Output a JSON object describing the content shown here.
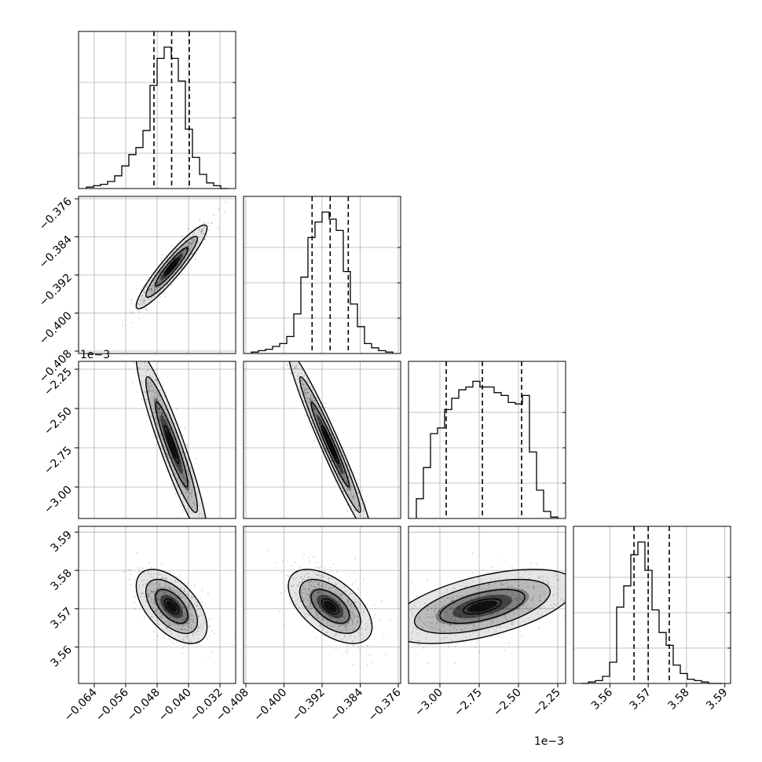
{
  "chart_data": {
    "type": "corner",
    "grid": true,
    "parameters": [
      {
        "range": [
          -0.068,
          -0.028
        ],
        "ticks": [
          -0.064,
          -0.056,
          -0.048,
          -0.04,
          -0.032
        ],
        "tick_labels": [
          "−0.064",
          "−0.056",
          "−0.048",
          "−0.040",
          "−0.032"
        ],
        "offset_text": "",
        "quantiles": [
          -0.0488,
          -0.0443,
          -0.0398
        ],
        "hist": [
          0.01,
          0.02,
          0.03,
          0.05,
          0.09,
          0.16,
          0.24,
          0.29,
          0.41,
          0.73,
          0.92,
          1.0,
          0.92,
          0.76,
          0.42,
          0.22,
          0.1,
          0.04,
          0.02,
          0.0
        ]
      },
      {
        "range": [
          -0.4085,
          -0.3755
        ],
        "ticks": [
          -0.408,
          -0.4,
          -0.392,
          -0.384,
          -0.376
        ],
        "tick_labels": [
          "−0.408",
          "−0.400",
          "−0.392",
          "−0.384",
          "−0.376"
        ],
        "offset_text": "",
        "quantiles": [
          -0.3941,
          -0.3903,
          -0.3865
        ],
        "hist": [
          0.01,
          0.02,
          0.03,
          0.05,
          0.07,
          0.12,
          0.28,
          0.54,
          0.82,
          0.93,
          1.0,
          0.95,
          0.87,
          0.58,
          0.35,
          0.19,
          0.07,
          0.04,
          0.02,
          0.01
        ]
      },
      {
        "range": [
          -3.2,
          -2.2
        ],
        "ticks": [
          -3.0,
          -2.75,
          -2.5,
          -2.25
        ],
        "tick_labels": [
          "−3.00",
          "−2.75",
          "−2.50",
          "−2.25"
        ],
        "offset_text": "1e−3",
        "quantiles": [
          -2.96,
          -2.73,
          -2.48
        ],
        "hist": [
          0.14,
          0.36,
          0.6,
          0.64,
          0.77,
          0.85,
          0.91,
          0.93,
          0.97,
          0.93,
          0.93,
          0.89,
          0.87,
          0.82,
          0.81,
          0.87,
          0.47,
          0.2,
          0.05,
          0.01
        ]
      },
      {
        "range": [
          3.5505,
          3.5915
        ],
        "ticks": [
          3.56,
          3.57,
          3.58,
          3.59
        ],
        "tick_labels": [
          "3.56",
          "3.57",
          "3.58",
          "3.59"
        ],
        "offset_text": "",
        "quantiles": [
          3.5663,
          3.57,
          3.5755
        ],
        "hist": [
          0.0,
          0.01,
          0.02,
          0.05,
          0.15,
          0.54,
          0.69,
          0.91,
          1.0,
          0.8,
          0.52,
          0.36,
          0.27,
          0.13,
          0.07,
          0.03,
          0.02,
          0.01,
          0.0,
          0.0
        ]
      }
    ],
    "pairs": [
      {
        "x": 0,
        "y": 1,
        "center": [
          -0.0443,
          -0.3903
        ],
        "sd": [
          0.0041,
          0.004
        ],
        "rho": 0.93
      },
      {
        "x": 0,
        "y": 2,
        "center": [
          -0.0443,
          -2.73
        ],
        "sd": [
          0.0041,
          0.27
        ],
        "rho": -0.93
      },
      {
        "x": 1,
        "y": 2,
        "center": [
          -0.3903,
          -2.73
        ],
        "sd": [
          0.004,
          0.27
        ],
        "rho": -0.97
      },
      {
        "x": 0,
        "y": 3,
        "center": [
          -0.0443,
          3.5706
        ],
        "sd": [
          0.0041,
          0.0044
        ],
        "rho": -0.55
      },
      {
        "x": 1,
        "y": 3,
        "center": [
          -0.3903,
          3.5706
        ],
        "sd": [
          0.004,
          0.0044
        ],
        "rho": -0.55
      },
      {
        "x": 2,
        "y": 3,
        "center": [
          -2.73,
          3.5706
        ],
        "sd": [
          0.27,
          0.0044
        ],
        "rho": 0.55
      }
    ],
    "colors": {
      "line": "#000000",
      "grid": "#b0b0b0",
      "density": "#000000"
    }
  }
}
